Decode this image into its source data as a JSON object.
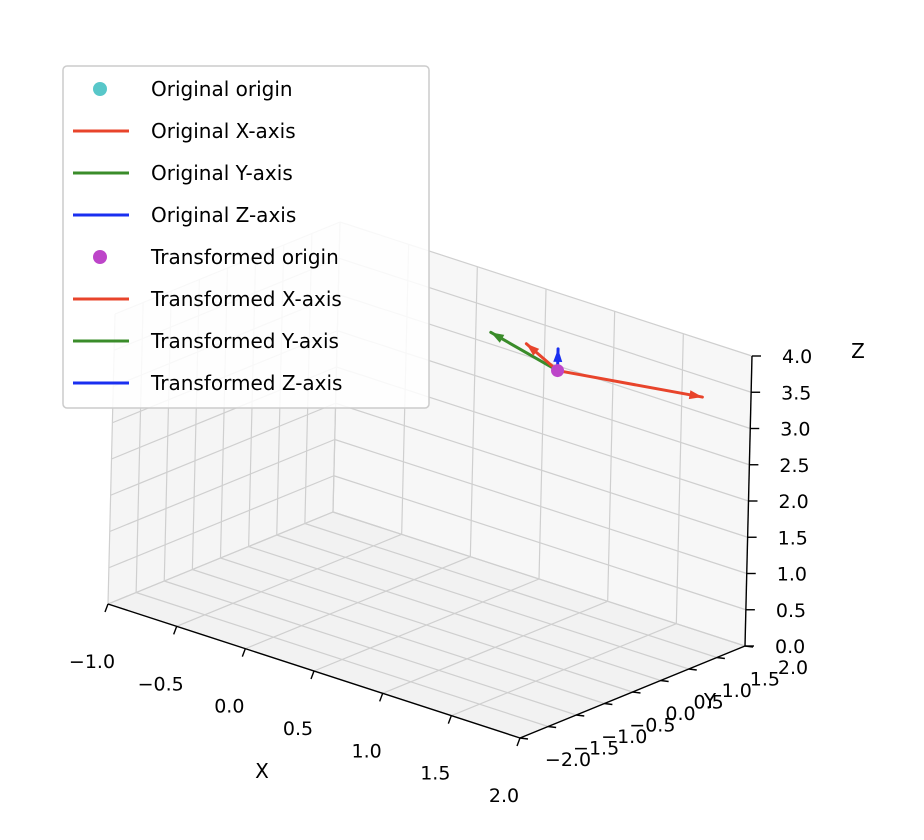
{
  "chart_data": {
    "type": "3d-line",
    "title": "",
    "xlabel": "X",
    "ylabel": "Y",
    "zlabel": "Z",
    "xlim": [
      -1.0,
      2.0
    ],
    "ylim": [
      -2.0,
      2.0
    ],
    "zlim": [
      0.0,
      4.0
    ],
    "x_ticks": [
      "−1.0",
      "−0.5",
      "0.0",
      "0.5",
      "1.0",
      "1.5",
      "2.0"
    ],
    "y_ticks": [
      "−2.0",
      "−1.5",
      "−1.0",
      "−0.5",
      "0.0",
      "0.5",
      "1.0",
      "1.5",
      "2.0"
    ],
    "z_ticks": [
      "0.0",
      "0.5",
      "1.0",
      "1.5",
      "2.0",
      "2.5",
      "3.0",
      "3.5",
      "4.0"
    ],
    "grid": true,
    "legend_placement": "upper-left",
    "legend": [
      {
        "label": "Original origin",
        "kind": "marker",
        "color": "#58c7c9"
      },
      {
        "label": "Original X-axis",
        "kind": "line",
        "color": "#e8442b"
      },
      {
        "label": "Original Y-axis",
        "kind": "line",
        "color": "#3a8c2a"
      },
      {
        "label": "Original Z-axis",
        "kind": "line",
        "color": "#1a2ff0"
      },
      {
        "label": "Transformed origin",
        "kind": "marker",
        "color": "#bd45c9"
      },
      {
        "label": "Transformed X-axis",
        "kind": "line",
        "color": "#e8442b"
      },
      {
        "label": "Transformed Y-axis",
        "kind": "line",
        "color": "#3a8c2a"
      },
      {
        "label": "Transformed Z-axis",
        "kind": "line",
        "color": "#1a2ff0"
      }
    ],
    "transformed_origin": [
      1.0,
      1.0,
      3.5
    ],
    "vectors": [
      {
        "name": "Transformed X-axis",
        "from": [
          1.0,
          1.0,
          3.5
        ],
        "to": [
          1.85,
          1.5,
          3.5
        ],
        "color": "#e8442b"
      },
      {
        "name": "Transformed Y-axis",
        "from": [
          1.0,
          1.0,
          3.5
        ],
        "to": [
          0.35,
          1.4,
          3.5
        ],
        "color": "#3a8c2a"
      },
      {
        "name": "Transformed Z-axis",
        "from": [
          1.0,
          1.0,
          3.5
        ],
        "to": [
          1.0,
          1.0,
          3.8
        ],
        "color": "#1a2ff0"
      },
      {
        "name": "Original X-axis (short)",
        "from": [
          1.0,
          1.0,
          3.5
        ],
        "to": [
          0.75,
          1.05,
          3.7
        ],
        "color": "#e8442b"
      }
    ]
  }
}
